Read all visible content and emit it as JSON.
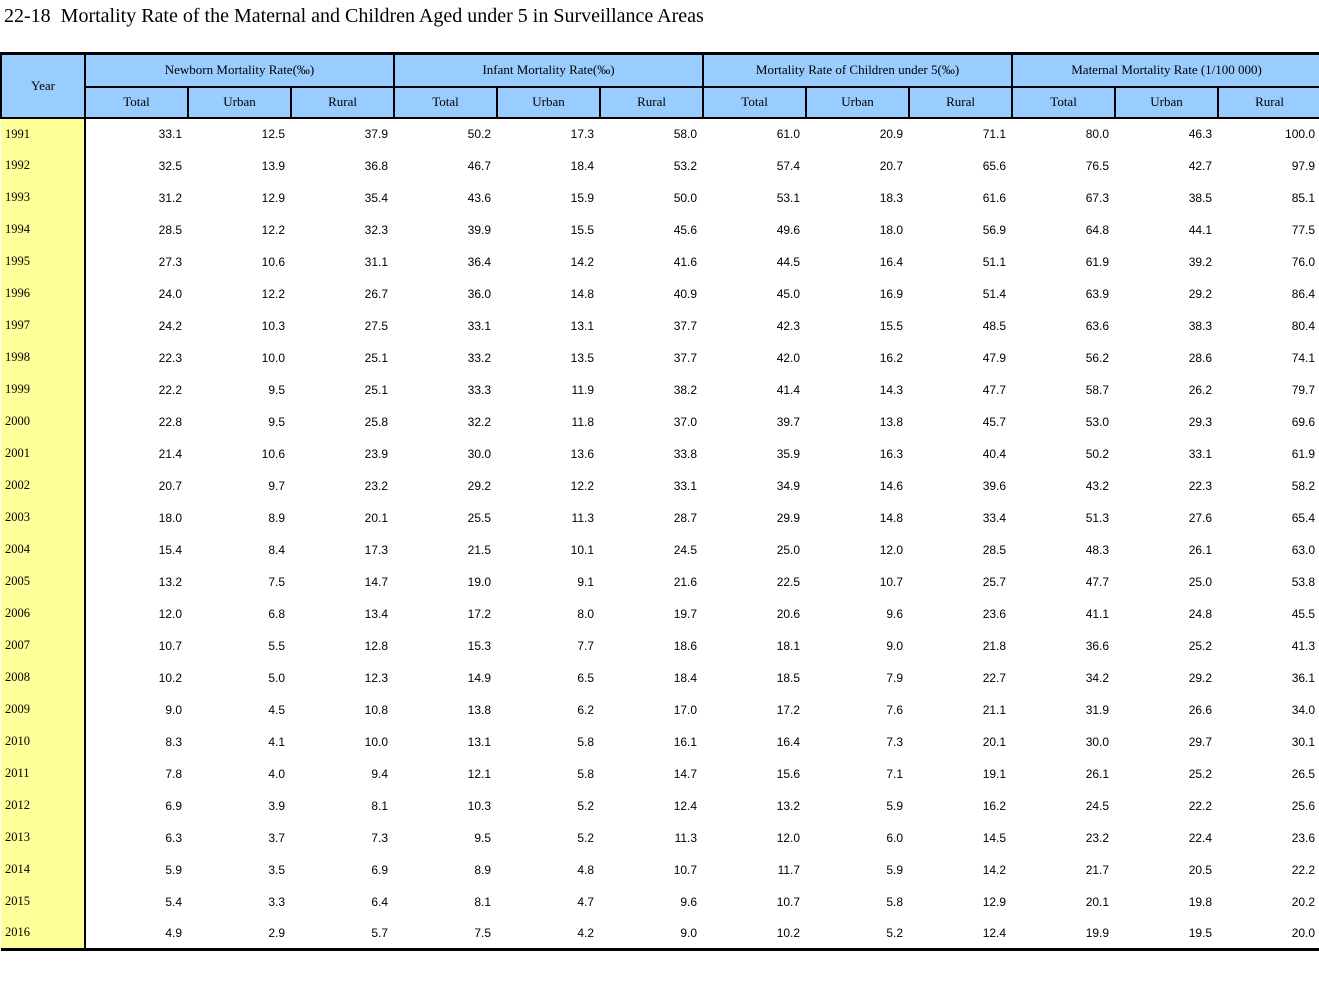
{
  "title": "22-18  Mortality Rate of the Maternal and Children Aged under 5 in Surveillance Areas",
  "colors": {
    "header_bg": "#99CCFF",
    "year_bg": "#FFFF99",
    "border": "#000000"
  },
  "table": {
    "year_header": "Year",
    "groups": [
      "Newborn Mortality Rate(‰)",
      "Infant Mortality Rate(‰)",
      "Mortality Rate of Children under 5(‰)",
      "Maternal Mortality Rate (1/100 000)"
    ],
    "sub_headers": [
      "Total",
      "Urban",
      "Rural",
      "Total",
      "Urban",
      "Rural",
      "Total",
      "Urban",
      "Rural",
      "Total",
      "Urban",
      "Rural"
    ],
    "rows": [
      {
        "year": "1991",
        "values": [
          "33.1",
          "12.5",
          "37.9",
          "50.2",
          "17.3",
          "58.0",
          "61.0",
          "20.9",
          "71.1",
          "80.0",
          "46.3",
          "100.0"
        ]
      },
      {
        "year": "1992",
        "values": [
          "32.5",
          "13.9",
          "36.8",
          "46.7",
          "18.4",
          "53.2",
          "57.4",
          "20.7",
          "65.6",
          "76.5",
          "42.7",
          "97.9"
        ]
      },
      {
        "year": "1993",
        "values": [
          "31.2",
          "12.9",
          "35.4",
          "43.6",
          "15.9",
          "50.0",
          "53.1",
          "18.3",
          "61.6",
          "67.3",
          "38.5",
          "85.1"
        ]
      },
      {
        "year": "1994",
        "values": [
          "28.5",
          "12.2",
          "32.3",
          "39.9",
          "15.5",
          "45.6",
          "49.6",
          "18.0",
          "56.9",
          "64.8",
          "44.1",
          "77.5"
        ]
      },
      {
        "year": "1995",
        "values": [
          "27.3",
          "10.6",
          "31.1",
          "36.4",
          "14.2",
          "41.6",
          "44.5",
          "16.4",
          "51.1",
          "61.9",
          "39.2",
          "76.0"
        ]
      },
      {
        "year": "1996",
        "values": [
          "24.0",
          "12.2",
          "26.7",
          "36.0",
          "14.8",
          "40.9",
          "45.0",
          "16.9",
          "51.4",
          "63.9",
          "29.2",
          "86.4"
        ]
      },
      {
        "year": "1997",
        "values": [
          "24.2",
          "10.3",
          "27.5",
          "33.1",
          "13.1",
          "37.7",
          "42.3",
          "15.5",
          "48.5",
          "63.6",
          "38.3",
          "80.4"
        ]
      },
      {
        "year": "1998",
        "values": [
          "22.3",
          "10.0",
          "25.1",
          "33.2",
          "13.5",
          "37.7",
          "42.0",
          "16.2",
          "47.9",
          "56.2",
          "28.6",
          "74.1"
        ]
      },
      {
        "year": "1999",
        "values": [
          "22.2",
          "9.5",
          "25.1",
          "33.3",
          "11.9",
          "38.2",
          "41.4",
          "14.3",
          "47.7",
          "58.7",
          "26.2",
          "79.7"
        ]
      },
      {
        "year": "2000",
        "values": [
          "22.8",
          "9.5",
          "25.8",
          "32.2",
          "11.8",
          "37.0",
          "39.7",
          "13.8",
          "45.7",
          "53.0",
          "29.3",
          "69.6"
        ]
      },
      {
        "year": "2001",
        "values": [
          "21.4",
          "10.6",
          "23.9",
          "30.0",
          "13.6",
          "33.8",
          "35.9",
          "16.3",
          "40.4",
          "50.2",
          "33.1",
          "61.9"
        ]
      },
      {
        "year": "2002",
        "values": [
          "20.7",
          "9.7",
          "23.2",
          "29.2",
          "12.2",
          "33.1",
          "34.9",
          "14.6",
          "39.6",
          "43.2",
          "22.3",
          "58.2"
        ]
      },
      {
        "year": "2003",
        "values": [
          "18.0",
          "8.9",
          "20.1",
          "25.5",
          "11.3",
          "28.7",
          "29.9",
          "14.8",
          "33.4",
          "51.3",
          "27.6",
          "65.4"
        ]
      },
      {
        "year": "2004",
        "values": [
          "15.4",
          "8.4",
          "17.3",
          "21.5",
          "10.1",
          "24.5",
          "25.0",
          "12.0",
          "28.5",
          "48.3",
          "26.1",
          "63.0"
        ]
      },
      {
        "year": "2005",
        "values": [
          "13.2",
          "7.5",
          "14.7",
          "19.0",
          "9.1",
          "21.6",
          "22.5",
          "10.7",
          "25.7",
          "47.7",
          "25.0",
          "53.8"
        ]
      },
      {
        "year": "2006",
        "values": [
          "12.0",
          "6.8",
          "13.4",
          "17.2",
          "8.0",
          "19.7",
          "20.6",
          "9.6",
          "23.6",
          "41.1",
          "24.8",
          "45.5"
        ]
      },
      {
        "year": "2007",
        "values": [
          "10.7",
          "5.5",
          "12.8",
          "15.3",
          "7.7",
          "18.6",
          "18.1",
          "9.0",
          "21.8",
          "36.6",
          "25.2",
          "41.3"
        ]
      },
      {
        "year": "2008",
        "values": [
          "10.2",
          "5.0",
          "12.3",
          "14.9",
          "6.5",
          "18.4",
          "18.5",
          "7.9",
          "22.7",
          "34.2",
          "29.2",
          "36.1"
        ]
      },
      {
        "year": "2009",
        "values": [
          "9.0",
          "4.5",
          "10.8",
          "13.8",
          "6.2",
          "17.0",
          "17.2",
          "7.6",
          "21.1",
          "31.9",
          "26.6",
          "34.0"
        ]
      },
      {
        "year": "2010",
        "values": [
          "8.3",
          "4.1",
          "10.0",
          "13.1",
          "5.8",
          "16.1",
          "16.4",
          "7.3",
          "20.1",
          "30.0",
          "29.7",
          "30.1"
        ]
      },
      {
        "year": "2011",
        "values": [
          "7.8",
          "4.0",
          "9.4",
          "12.1",
          "5.8",
          "14.7",
          "15.6",
          "7.1",
          "19.1",
          "26.1",
          "25.2",
          "26.5"
        ]
      },
      {
        "year": "2012",
        "values": [
          "6.9",
          "3.9",
          "8.1",
          "10.3",
          "5.2",
          "12.4",
          "13.2",
          "5.9",
          "16.2",
          "24.5",
          "22.2",
          "25.6"
        ]
      },
      {
        "year": "2013",
        "values": [
          "6.3",
          "3.7",
          "7.3",
          "9.5",
          "5.2",
          "11.3",
          "12.0",
          "6.0",
          "14.5",
          "23.2",
          "22.4",
          "23.6"
        ]
      },
      {
        "year": "2014",
        "values": [
          "5.9",
          "3.5",
          "6.9",
          "8.9",
          "4.8",
          "10.7",
          "11.7",
          "5.9",
          "14.2",
          "21.7",
          "20.5",
          "22.2"
        ]
      },
      {
        "year": "2015",
        "values": [
          "5.4",
          "3.3",
          "6.4",
          "8.1",
          "4.7",
          "9.6",
          "10.7",
          "5.8",
          "12.9",
          "20.1",
          "19.8",
          "20.2"
        ]
      },
      {
        "year": "2016",
        "values": [
          "4.9",
          "2.9",
          "5.7",
          "7.5",
          "4.2",
          "9.0",
          "10.2",
          "5.2",
          "12.4",
          "19.9",
          "19.5",
          "20.0"
        ]
      }
    ]
  }
}
